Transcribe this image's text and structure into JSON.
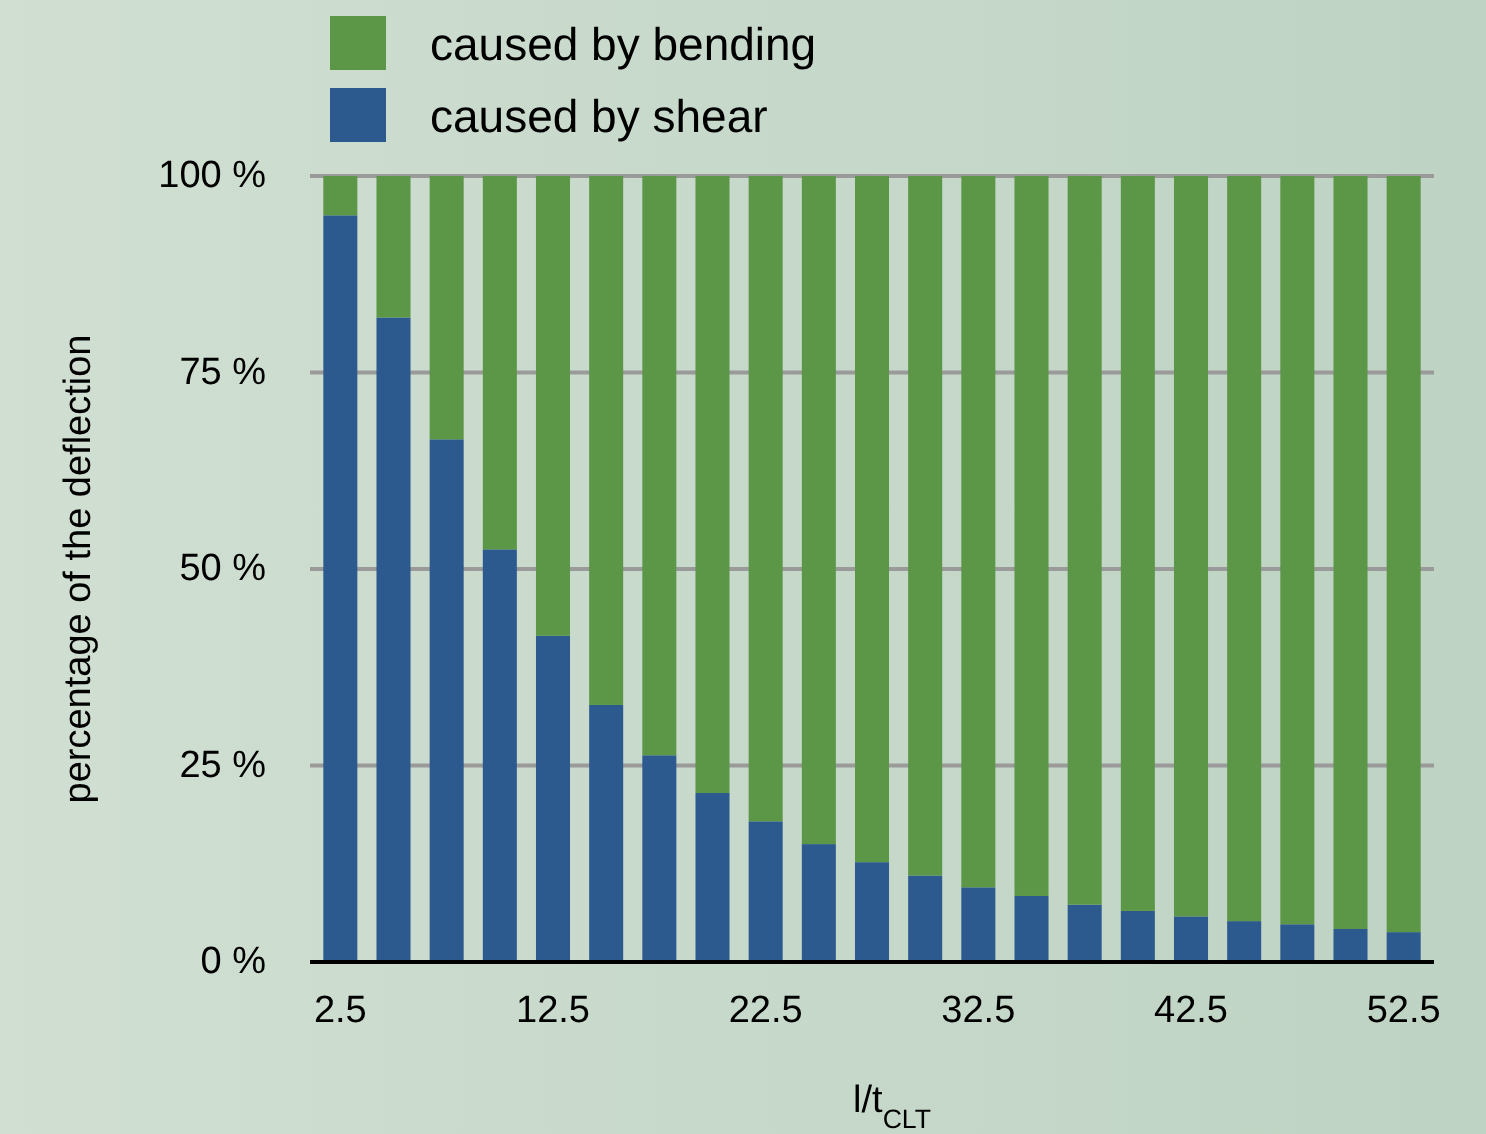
{
  "chart_data": {
    "type": "bar",
    "stacked": true,
    "xlabel": "l/t$_{CLT}$",
    "ylabel": "percentage of the deflection",
    "categories": [
      "2.5",
      null,
      null,
      null,
      "12.5",
      null,
      null,
      null,
      "22.5",
      null,
      null,
      null,
      "32.5",
      null,
      null,
      null,
      "42.5",
      null,
      null,
      null,
      "52.5"
    ],
    "series": [
      {
        "name": "caused by shear",
        "color": "#2d5a8e",
        "values": [
          95,
          82,
          66.5,
          52.5,
          41.5,
          32.7,
          26.3,
          21.5,
          17.9,
          15,
          12.7,
          11,
          9.5,
          8.4,
          7.3,
          6.5,
          5.8,
          5.2,
          4.8,
          4.2,
          3.8
        ]
      },
      {
        "name": "caused by bending",
        "color": "#5c9647",
        "values": [
          5,
          18,
          33.5,
          47.5,
          58.5,
          67.3,
          73.7,
          78.5,
          82.1,
          85,
          87.3,
          89,
          90.5,
          91.6,
          92.7,
          93.5,
          94.2,
          94.8,
          95.2,
          95.8,
          96.2
        ]
      }
    ],
    "ylim": [
      0,
      100
    ],
    "yticks": [
      {
        "value": 0,
        "label": "0 %"
      },
      {
        "value": 25,
        "label": "25 %"
      },
      {
        "value": 50,
        "label": "50 %"
      },
      {
        "value": 75,
        "label": "75 %"
      },
      {
        "value": 100,
        "label": "100 %"
      }
    ],
    "grid": "y",
    "legend": "top"
  }
}
